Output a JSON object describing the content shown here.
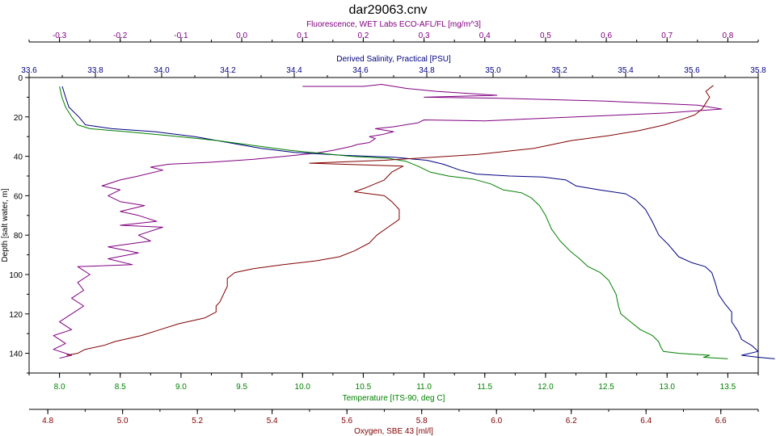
{
  "chart_data": {
    "type": "line",
    "title": "dar29063.cnv",
    "grid": false,
    "legend": "none",
    "y_axis": {
      "label": "Depth [salt water, m]",
      "range": [
        0,
        150
      ],
      "ticks": [
        0,
        20,
        40,
        60,
        80,
        100,
        120,
        140
      ],
      "color": "#000000"
    },
    "x_axes": [
      {
        "id": "fluor",
        "position": "top-outer",
        "label": "Fluorescence, WET Labs ECO-AFL/FL [mg/m^3]",
        "range": [
          -0.35,
          0.85
        ],
        "ticks": [
          -0.3,
          -0.2,
          -0.1,
          0.0,
          0.1,
          0.2,
          0.3,
          0.4,
          0.5,
          0.6,
          0.7,
          0.8
        ],
        "tick_labels": [
          "-0.3",
          "-0.2",
          "-0.1",
          "0.0",
          "0.1",
          "0.2",
          "0.3",
          "0.4",
          "0.5",
          "0.6",
          "0.7",
          "0.8"
        ],
        "color": "#800080"
      },
      {
        "id": "sal",
        "position": "top-inner",
        "label": "Derived Salinity, Practical [PSU]",
        "range": [
          33.6,
          35.8
        ],
        "ticks": [
          33.6,
          33.8,
          34.0,
          34.2,
          34.4,
          34.6,
          34.8,
          35.0,
          35.2,
          35.4,
          35.6,
          35.8
        ],
        "tick_labels": [
          "33.6",
          "33.8",
          "34.0",
          "34.2",
          "34.4",
          "34.6",
          "34.8",
          "35.0",
          "35.2",
          "35.4",
          "35.6",
          "35.8"
        ],
        "color": "#000080"
      },
      {
        "id": "temp",
        "position": "bottom-inner",
        "label": "Temperature [ITS-90, deg C]",
        "range": [
          7.75,
          13.75
        ],
        "ticks": [
          8.0,
          8.5,
          9.0,
          9.5,
          10.0,
          10.5,
          11.0,
          11.5,
          12.0,
          12.5,
          13.0,
          13.5
        ],
        "tick_labels": [
          "8.0",
          "8.5",
          "9.0",
          "9.5",
          "10.0",
          "10.5",
          "11.0",
          "11.5",
          "12.0",
          "12.5",
          "13.0",
          "13.5"
        ],
        "color": "#008000"
      },
      {
        "id": "oxy",
        "position": "bottom-outer",
        "label": "Oxygen, SBE 43 [ml/l]",
        "range": [
          4.75,
          6.7
        ],
        "ticks": [
          4.8,
          5.0,
          5.2,
          5.4,
          5.6,
          5.8,
          6.0,
          6.2,
          6.4,
          6.6
        ],
        "tick_labels": [
          "4.8",
          "5.0",
          "5.2",
          "5.4",
          "5.6",
          "5.8",
          "6.0",
          "6.2",
          "6.4",
          "6.6"
        ],
        "color": "#800000"
      }
    ],
    "series": [
      {
        "axis": "fluor",
        "color": "#800080",
        "points": [
          [
            0.1,
            4.5
          ],
          [
            0.2,
            4.5
          ],
          [
            0.23,
            3.5
          ],
          [
            0.27,
            5.5
          ],
          [
            0.32,
            7
          ],
          [
            0.42,
            9
          ],
          [
            0.3,
            10
          ],
          [
            0.42,
            10.5
          ],
          [
            0.6,
            12
          ],
          [
            0.75,
            14
          ],
          [
            0.79,
            16
          ],
          [
            0.7,
            18
          ],
          [
            0.55,
            20
          ],
          [
            0.4,
            22
          ],
          [
            0.3,
            21.5
          ],
          [
            0.29,
            23
          ],
          [
            0.25,
            25
          ],
          [
            0.22,
            26
          ],
          [
            0.25,
            27.5
          ],
          [
            0.23,
            29
          ],
          [
            0.21,
            30
          ],
          [
            0.22,
            31
          ],
          [
            0.21,
            33
          ],
          [
            0.19,
            34
          ],
          [
            0.18,
            35
          ],
          [
            0.15,
            37
          ],
          [
            0.12,
            38.5
          ],
          [
            0.07,
            40
          ],
          [
            0.02,
            41.5
          ],
          [
            -0.05,
            43
          ],
          [
            -0.12,
            44
          ],
          [
            -0.15,
            45.5
          ],
          [
            -0.13,
            47
          ],
          [
            -0.17,
            50
          ],
          [
            -0.2,
            52
          ],
          [
            -0.23,
            55
          ],
          [
            -0.2,
            57
          ],
          [
            -0.22,
            60
          ],
          [
            -0.2,
            63
          ],
          [
            -0.16,
            65
          ],
          [
            -0.2,
            68
          ],
          [
            -0.17,
            70
          ],
          [
            -0.14,
            73
          ],
          [
            -0.2,
            75
          ],
          [
            -0.13,
            76
          ],
          [
            -0.17,
            80
          ],
          [
            -0.15,
            83
          ],
          [
            -0.22,
            86
          ],
          [
            -0.17,
            89
          ],
          [
            -0.22,
            92
          ],
          [
            -0.18,
            95
          ],
          [
            -0.27,
            96
          ],
          [
            -0.25,
            100
          ],
          [
            -0.27,
            104
          ],
          [
            -0.26,
            108
          ],
          [
            -0.28,
            112
          ],
          [
            -0.26,
            116
          ],
          [
            -0.28,
            120
          ],
          [
            -0.3,
            124
          ],
          [
            -0.28,
            128
          ],
          [
            -0.31,
            131
          ],
          [
            -0.29,
            135
          ],
          [
            -0.31,
            138
          ],
          [
            -0.28,
            141
          ],
          [
            -0.3,
            142.5
          ]
        ]
      },
      {
        "axis": "sal",
        "color": "#000080",
        "points": [
          [
            33.7,
            4.5
          ],
          [
            33.71,
            10
          ],
          [
            33.72,
            15
          ],
          [
            33.75,
            20
          ],
          [
            33.77,
            24
          ],
          [
            33.85,
            26
          ],
          [
            33.98,
            27.5
          ],
          [
            34.1,
            30
          ],
          [
            34.2,
            33
          ],
          [
            34.3,
            36
          ],
          [
            34.4,
            38
          ],
          [
            34.55,
            39.5
          ],
          [
            34.7,
            40.5
          ],
          [
            34.8,
            42
          ],
          [
            34.85,
            44
          ],
          [
            34.9,
            47
          ],
          [
            34.95,
            49
          ],
          [
            35.05,
            50
          ],
          [
            35.15,
            50.5
          ],
          [
            35.22,
            52
          ],
          [
            35.25,
            55
          ],
          [
            35.32,
            57
          ],
          [
            35.4,
            59
          ],
          [
            35.43,
            62
          ],
          [
            35.46,
            67
          ],
          [
            35.48,
            73
          ],
          [
            35.5,
            80
          ],
          [
            35.53,
            85
          ],
          [
            35.56,
            91
          ],
          [
            35.6,
            94
          ],
          [
            35.64,
            96
          ],
          [
            35.66,
            99
          ],
          [
            35.67,
            104
          ],
          [
            35.68,
            110
          ],
          [
            35.7,
            115
          ],
          [
            35.72,
            119
          ],
          [
            35.72,
            124
          ],
          [
            35.74,
            129
          ],
          [
            35.75,
            133
          ],
          [
            35.78,
            136
          ],
          [
            35.8,
            139
          ],
          [
            35.75,
            141
          ],
          [
            35.8,
            142
          ],
          [
            35.85,
            142.8
          ]
        ]
      },
      {
        "axis": "temp",
        "color": "#008000",
        "points": [
          [
            8.0,
            4.5
          ],
          [
            8.02,
            10
          ],
          [
            8.05,
            15
          ],
          [
            8.1,
            20
          ],
          [
            8.15,
            24
          ],
          [
            8.25,
            26
          ],
          [
            8.55,
            27.5
          ],
          [
            8.9,
            29.5
          ],
          [
            9.3,
            32
          ],
          [
            9.6,
            34.5
          ],
          [
            9.9,
            37
          ],
          [
            10.15,
            38.5
          ],
          [
            10.4,
            40
          ],
          [
            10.7,
            41
          ],
          [
            10.85,
            42.5
          ],
          [
            10.95,
            45
          ],
          [
            11.05,
            48
          ],
          [
            11.2,
            50
          ],
          [
            11.4,
            51.5
          ],
          [
            11.55,
            54
          ],
          [
            11.65,
            57
          ],
          [
            11.8,
            58.5
          ],
          [
            11.88,
            61
          ],
          [
            11.95,
            65
          ],
          [
            12.0,
            70
          ],
          [
            12.05,
            77
          ],
          [
            12.12,
            83
          ],
          [
            12.2,
            88
          ],
          [
            12.28,
            92
          ],
          [
            12.35,
            96
          ],
          [
            12.45,
            99
          ],
          [
            12.52,
            103
          ],
          [
            12.58,
            110
          ],
          [
            12.6,
            116
          ],
          [
            12.62,
            120
          ],
          [
            12.7,
            124
          ],
          [
            12.78,
            128
          ],
          [
            12.88,
            131
          ],
          [
            12.93,
            134
          ],
          [
            12.95,
            137
          ],
          [
            12.97,
            139
          ],
          [
            13.1,
            140
          ],
          [
            13.35,
            141
          ],
          [
            13.3,
            142
          ],
          [
            13.5,
            142.8
          ]
        ]
      },
      {
        "axis": "oxy",
        "color": "#800000",
        "points": [
          [
            6.58,
            4
          ],
          [
            6.56,
            7
          ],
          [
            6.57,
            10
          ],
          [
            6.56,
            13
          ],
          [
            6.55,
            16
          ],
          [
            6.53,
            19
          ],
          [
            6.5,
            21
          ],
          [
            6.45,
            24
          ],
          [
            6.38,
            27
          ],
          [
            6.3,
            29.5
          ],
          [
            6.2,
            32
          ],
          [
            6.1,
            36
          ],
          [
            5.95,
            39
          ],
          [
            5.7,
            42
          ],
          [
            5.5,
            43.5
          ],
          [
            5.75,
            45
          ],
          [
            5.72,
            48
          ],
          [
            5.7,
            52
          ],
          [
            5.65,
            56
          ],
          [
            5.62,
            58
          ],
          [
            5.7,
            60
          ],
          [
            5.72,
            63
          ],
          [
            5.74,
            67
          ],
          [
            5.74,
            72
          ],
          [
            5.71,
            76
          ],
          [
            5.68,
            80
          ],
          [
            5.66,
            84
          ],
          [
            5.62,
            88
          ],
          [
            5.58,
            91
          ],
          [
            5.52,
            93
          ],
          [
            5.43,
            95
          ],
          [
            5.35,
            97
          ],
          [
            5.3,
            99
          ],
          [
            5.28,
            102
          ],
          [
            5.28,
            106
          ],
          [
            5.27,
            110
          ],
          [
            5.26,
            114
          ],
          [
            5.25,
            116
          ],
          [
            5.25,
            119
          ],
          [
            5.22,
            122
          ],
          [
            5.15,
            125
          ],
          [
            5.1,
            128
          ],
          [
            5.05,
            131
          ],
          [
            4.98,
            134
          ],
          [
            4.95,
            136
          ],
          [
            4.9,
            138
          ],
          [
            4.88,
            140
          ],
          [
            4.85,
            141
          ]
        ]
      }
    ]
  }
}
